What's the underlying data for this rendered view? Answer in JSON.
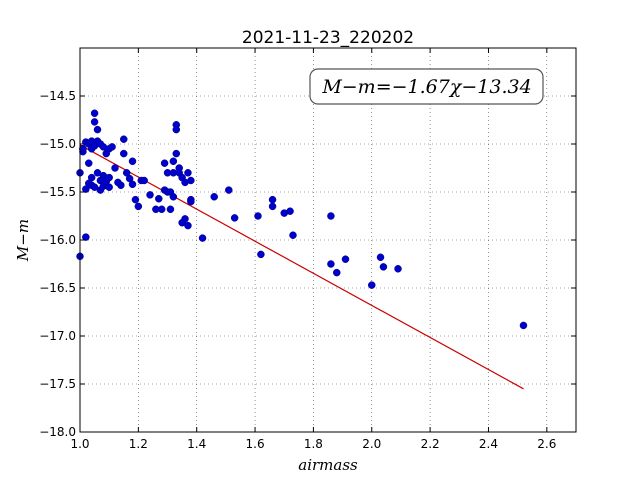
{
  "chart_data": {
    "type": "scatter",
    "title": "2021-11-23_220202",
    "xlabel": "airmass",
    "ylabel": "M−m",
    "xlim": [
      1.0,
      2.7
    ],
    "ylim": [
      -18.0,
      -14.0
    ],
    "x_ticks": [
      1.0,
      1.2,
      1.4,
      1.6,
      1.8,
      2.0,
      2.2,
      2.4,
      2.6
    ],
    "x_tick_labels": [
      "1.0",
      "1.2",
      "1.4",
      "1.6",
      "1.8",
      "2.0",
      "2.2",
      "2.4",
      "2.6"
    ],
    "y_ticks": [
      -14.5,
      -15.0,
      -15.5,
      -16.0,
      -16.5,
      -17.0,
      -17.5,
      -18.0
    ],
    "y_tick_labels": [
      "−14.5",
      "−15.0",
      "−15.5",
      "−16.0",
      "−16.5",
      "−17.0",
      "−17.5",
      "−18.0"
    ],
    "grid": true,
    "annotation": {
      "text": "M−m=−1.67χ−13.34",
      "position": "top-right",
      "fit_slope": -1.67,
      "fit_intercept": -13.34
    },
    "series": [
      {
        "kind": "scatter",
        "color": "#0000cc",
        "x": [
          1.0,
          1.01,
          1.01,
          1.02,
          1.02,
          1.02,
          1.03,
          1.03,
          1.03,
          1.04,
          1.04,
          1.04,
          1.04,
          1.05,
          1.05,
          1.05,
          1.05,
          1.06,
          1.06,
          1.06,
          1.07,
          1.07,
          1.07,
          1.08,
          1.08,
          1.08,
          1.09,
          1.09,
          1.1,
          1.1,
          1.1,
          1.11,
          1.12,
          1.13,
          1.14,
          1.15,
          1.15,
          1.16,
          1.17,
          1.18,
          1.18,
          1.19,
          1.2,
          1.21,
          1.22,
          1.24,
          1.26,
          1.27,
          1.28,
          1.29,
          1.29,
          1.3,
          1.3,
          1.31,
          1.31,
          1.32,
          1.32,
          1.32,
          1.33,
          1.33,
          1.33,
          1.34,
          1.34,
          1.35,
          1.35,
          1.36,
          1.36,
          1.37,
          1.37,
          1.38,
          1.38,
          1.38,
          1.42,
          1.46,
          1.51,
          1.53,
          1.61,
          1.62,
          1.66,
          1.66,
          1.7,
          1.72,
          1.73,
          1.86,
          1.86,
          1.88,
          1.91,
          2.0,
          2.03,
          2.04,
          2.09,
          2.52,
          1.0,
          1.01
        ],
        "y": [
          -15.3,
          -15.05,
          -15.08,
          -14.98,
          -15.47,
          -15.97,
          -15.2,
          -15.41,
          -15.0,
          -15.43,
          -15.35,
          -15.05,
          -14.97,
          -14.68,
          -14.77,
          -15.02,
          -15.45,
          -14.85,
          -14.97,
          -15.3,
          -15.38,
          -15.0,
          -15.48,
          -15.03,
          -15.33,
          -15.44,
          -15.1,
          -15.39,
          -15.05,
          -15.35,
          -15.45,
          -15.03,
          -15.25,
          -15.4,
          -15.43,
          -15.1,
          -14.95,
          -15.3,
          -15.36,
          -15.18,
          -15.42,
          -15.58,
          -15.65,
          -15.38,
          -15.38,
          -15.53,
          -15.68,
          -15.57,
          -15.68,
          -15.48,
          -15.2,
          -15.3,
          -15.5,
          -15.5,
          -15.68,
          -15.55,
          -15.18,
          -15.3,
          -14.8,
          -14.85,
          -15.1,
          -15.25,
          -15.3,
          -15.82,
          -15.35,
          -15.78,
          -15.4,
          -15.3,
          -15.85,
          -15.38,
          -15.58,
          -15.6,
          -15.98,
          -15.55,
          -15.48,
          -15.77,
          -15.75,
          -16.15,
          -15.58,
          -15.65,
          -15.72,
          -15.7,
          -15.95,
          -15.75,
          -16.25,
          -16.34,
          -16.2,
          -16.47,
          -16.18,
          -16.28,
          -16.3,
          -16.89,
          -16.17,
          -15.05
        ]
      },
      {
        "kind": "line",
        "color": "#cc0000",
        "x": [
          1.0,
          2.52
        ],
        "y": [
          -15.01,
          -17.55
        ]
      }
    ]
  }
}
